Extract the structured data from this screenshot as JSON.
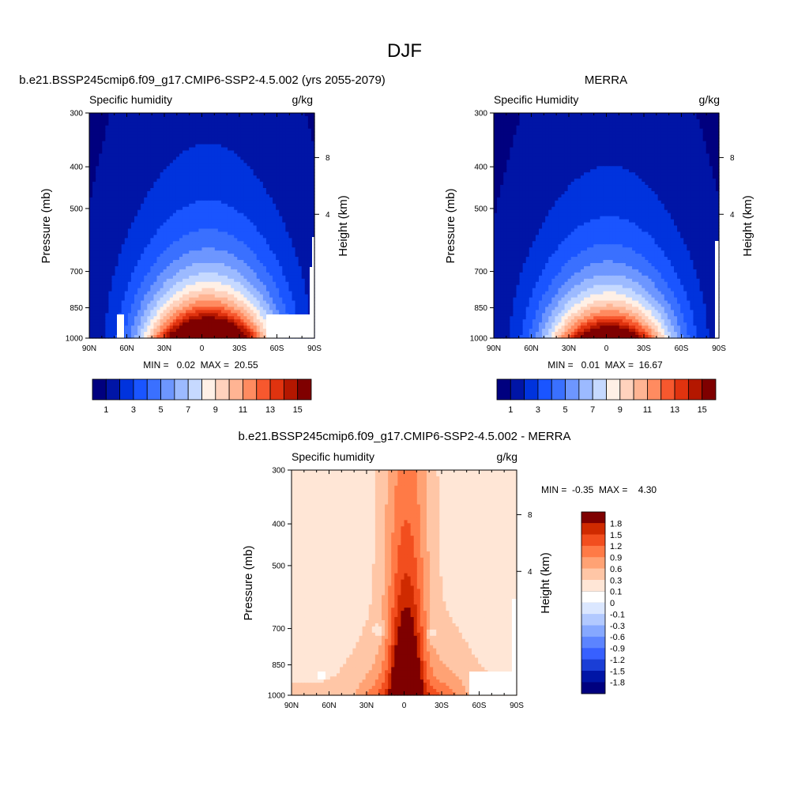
{
  "title": "DJF",
  "colors": {
    "abs_palette": [
      "#00007f",
      "#0015a6",
      "#0033dd",
      "#1a55ff",
      "#3a70ff",
      "#6d96ff",
      "#9cbaff",
      "#c6d9ff",
      "#fff0e6",
      "#ffd2bd",
      "#ffb493",
      "#ff8b60",
      "#f7582e",
      "#e0330f",
      "#b41700",
      "#7f0000"
    ],
    "diff_palette": [
      "#00007f",
      "#0015a6",
      "#1a3ed6",
      "#3760ff",
      "#5c84ff",
      "#86a8ff",
      "#b2c9ff",
      "#dbe7ff",
      "#ffffff",
      "#ffe6d6",
      "#ffc6a6",
      "#ffa274",
      "#ff7a46",
      "#f24e1e",
      "#cf2a00",
      "#7f0000"
    ]
  },
  "chart_data": [
    {
      "type": "heatmap",
      "panel": "model",
      "title": "b.e21.BSSP245cmip6.f09_g17.CMIP6-SSP2-4.5.002 (yrs 2055-2079)",
      "left_label": "Specific humidity",
      "right_label": "g/kg",
      "ylabel": "Pressure (mb)",
      "ylabel_right": "Height (km)",
      "xticks": [
        "90N",
        "60N",
        "30N",
        "0",
        "30S",
        "60S",
        "90S"
      ],
      "yticks": [
        "300",
        "400",
        "500",
        "700",
        "850",
        "1000"
      ],
      "yticks_right": [
        "8",
        "4"
      ],
      "ylim": [
        1000,
        300
      ],
      "x": [
        90,
        60,
        30,
        0,
        -30,
        -60,
        -90
      ],
      "pressure": [
        1000,
        850,
        700,
        500,
        400,
        300
      ],
      "peak": {
        "lat": -5,
        "value": 20.55
      },
      "min_max_text": "MIN =   0.02  MAX =  20.55",
      "colorbar": {
        "levels": [
          "1",
          "3",
          "5",
          "7",
          "9",
          "11",
          "13",
          "15"
        ]
      }
    },
    {
      "type": "heatmap",
      "panel": "obs",
      "title": "MERRA",
      "left_label": "Specific Humidity",
      "right_label": "g/kg",
      "ylabel": "Pressure (mb)",
      "ylabel_right": "Height (km)",
      "xticks": [
        "90N",
        "60N",
        "30N",
        "0",
        "30S",
        "60S",
        "90S"
      ],
      "yticks": [
        "300",
        "400",
        "500",
        "700",
        "850",
        "1000"
      ],
      "yticks_right": [
        "8",
        "4"
      ],
      "ylim": [
        1000,
        300
      ],
      "x": [
        90,
        60,
        30,
        0,
        -30,
        -60,
        -90
      ],
      "pressure": [
        1000,
        850,
        700,
        500,
        400,
        300
      ],
      "peak": {
        "lat": -2,
        "value": 16.67
      },
      "min_max_text": "MIN =   0.01  MAX =  16.67",
      "colorbar": {
        "levels": [
          "1",
          "3",
          "5",
          "7",
          "9",
          "11",
          "13",
          "15"
        ]
      }
    },
    {
      "type": "heatmap",
      "panel": "diff",
      "title": "b.e21.BSSP245cmip6.f09_g17.CMIP6-SSP2-4.5.002 - MERRA",
      "left_label": "Specific humidity",
      "right_label": "g/kg",
      "ylabel": "Pressure (mb)",
      "ylabel_right": "Height (km)",
      "xticks": [
        "90N",
        "60N",
        "30N",
        "0",
        "30S",
        "60S",
        "90S"
      ],
      "yticks": [
        "300",
        "400",
        "500",
        "700",
        "850",
        "1000"
      ],
      "yticks_right": [
        "8",
        "4"
      ],
      "ylim": [
        1000,
        300
      ],
      "min": -0.35,
      "max": 4.3,
      "min_max_text": "MIN =  -0.35  MAX =    4.30",
      "colorbar": {
        "levels": [
          "1.8",
          "1.5",
          "1.2",
          "0.9",
          "0.6",
          "0.3",
          "0.1",
          "0",
          "-0.1",
          "-0.3",
          "-0.6",
          "-0.9",
          "-1.2",
          "-1.5",
          "-1.8"
        ]
      }
    }
  ]
}
